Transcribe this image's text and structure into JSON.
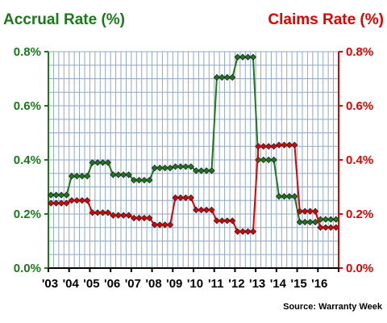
{
  "chart_data": {
    "type": "line",
    "left_axis_title": "Accrual Rate (%)",
    "right_axis_title": "Claims Rate (%)",
    "source": "Source: Warranty Week",
    "x_tick_labels": [
      "'03",
      "'04",
      "'05",
      "'06",
      "'07",
      "'08",
      "'09",
      "'10",
      "'11",
      "'12",
      "'13",
      "'14",
      "'15",
      "'16"
    ],
    "y_tick_labels": [
      "0.0%",
      "0.2%",
      "0.4%",
      "0.6%",
      "0.8%"
    ],
    "ylim": [
      0,
      0.8
    ],
    "grid": true,
    "colors": {
      "accrual": "#1a7a1a",
      "claims": "#e00000",
      "grid": "#8fa8c8"
    },
    "series": [
      {
        "axis": "left",
        "values": [
          0.27,
          0.27,
          0.27,
          0.27,
          0.34,
          0.34,
          0.34,
          0.34,
          0.39,
          0.39,
          0.39,
          0.39,
          0.345,
          0.345,
          0.345,
          0.345,
          0.325,
          0.325,
          0.325,
          0.325,
          0.37,
          0.37,
          0.37,
          0.37,
          0.375,
          0.375,
          0.375,
          0.375,
          0.36,
          0.36,
          0.36,
          0.36,
          0.705,
          0.705,
          0.705,
          0.705,
          0.78,
          0.78,
          0.78,
          0.78,
          0.4,
          0.4,
          0.4,
          0.4,
          0.265,
          0.265,
          0.265,
          0.265,
          0.17,
          0.17,
          0.17,
          0.17,
          0.18,
          0.18,
          0.18,
          0.18
        ]
      },
      {
        "axis": "right",
        "values": [
          0.24,
          0.24,
          0.24,
          0.24,
          0.25,
          0.25,
          0.25,
          0.25,
          0.205,
          0.205,
          0.205,
          0.205,
          0.195,
          0.195,
          0.195,
          0.195,
          0.185,
          0.185,
          0.185,
          0.185,
          0.16,
          0.16,
          0.16,
          0.16,
          0.26,
          0.26,
          0.26,
          0.26,
          0.215,
          0.215,
          0.215,
          0.215,
          0.175,
          0.175,
          0.175,
          0.175,
          0.135,
          0.135,
          0.135,
          0.135,
          0.45,
          0.45,
          0.45,
          0.45,
          0.455,
          0.455,
          0.455,
          0.455,
          0.21,
          0.21,
          0.21,
          0.21,
          0.15,
          0.15,
          0.15,
          0.15
        ]
      }
    ]
  }
}
